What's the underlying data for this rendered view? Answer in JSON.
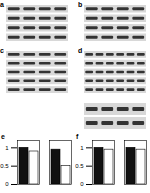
{
  "blots": [
    {
      "label": "a",
      "lanes": 4,
      "bands": 4
    },
    {
      "label": "b",
      "lanes": 4,
      "bands": 4
    },
    {
      "label": "c",
      "lanes": 4,
      "bands": 5
    },
    {
      "label": "d",
      "lanes": 6,
      "bands": 5
    },
    {
      "lanes": 4,
      "bands": 2
    }
  ],
  "chart_data": [
    {
      "type": "bar",
      "title": "e",
      "categories": [
        null,
        null
      ],
      "series": [
        {
          "color": "#111111",
          "values": [
            1.0,
            0.95
          ]
        },
        {
          "color": "#ffffff",
          "values": [
            0.9,
            0.5
          ]
        }
      ],
      "ylim": [
        0,
        1.2
      ],
      "yticks": [
        0,
        0.5,
        1
      ]
    },
    {
      "type": "bar",
      "title": "f",
      "categories": [
        null,
        null
      ],
      "series": [
        {
          "color": "#111111",
          "values": [
            1.0,
            1.0
          ]
        },
        {
          "color": "#ffffff",
          "values": [
            0.95,
            0.95
          ]
        }
      ],
      "ylim": [
        0,
        1.2
      ],
      "yticks": [
        0,
        0.5,
        1
      ]
    }
  ]
}
